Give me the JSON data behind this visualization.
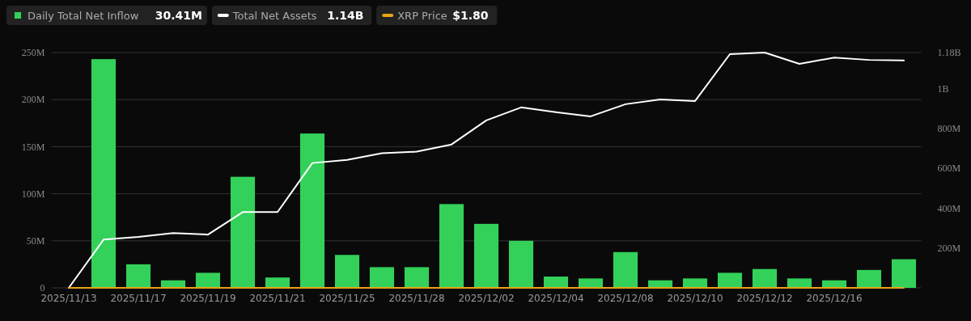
{
  "chart_data": {
    "type": "bar",
    "categories": [
      "2025/11/13",
      null,
      "2025/11/17",
      null,
      "2025/11/19",
      null,
      "2025/11/21",
      null,
      "2025/11/25",
      null,
      "2025/11/28",
      null,
      "2025/12/02",
      null,
      "2025/12/04",
      null,
      "2025/12/08",
      null,
      "2025/12/10",
      null,
      "2025/12/12",
      null,
      "2025/12/16",
      null,
      null
    ],
    "series": [
      {
        "name": "Daily Total Net Inflow",
        "color": "#33d15a",
        "values": [
          0,
          243,
          25,
          8,
          16,
          118,
          11,
          164,
          35,
          22,
          22,
          89,
          68,
          50,
          12,
          10,
          38,
          8,
          10,
          16,
          20,
          10,
          8,
          19,
          30.41
        ]
      },
      {
        "name": "Total Net Assets",
        "type": "line",
        "color": "#ffffff",
        "axis": "y2",
        "values": [
          0,
          242000000,
          255000000,
          275000000,
          267000000,
          380000000,
          380000000,
          626000000,
          642000000,
          675000000,
          683000000,
          719000000,
          840000000,
          905000000,
          881000000,
          860000000,
          921000000,
          945000000,
          937000000,
          1172000000,
          1180000000,
          1123000000,
          1155000000,
          1143000000,
          1140000000
        ]
      },
      {
        "name": "XRP Price",
        "type": "line",
        "color": "#e8a317",
        "values": [
          0,
          0,
          0,
          0,
          0,
          0,
          0,
          0,
          0,
          0,
          0,
          0,
          0,
          0,
          0,
          0,
          0,
          0,
          0,
          0,
          0,
          0,
          0,
          0,
          0
        ]
      }
    ],
    "annotations": [
      "30.41M",
      "1.14B",
      "$1.80"
    ],
    "ylim": [
      0,
      250
    ],
    "yticks": [
      {
        "value": 0,
        "label": "0"
      },
      {
        "value": 50,
        "label": "50M"
      },
      {
        "value": 100,
        "label": "100M"
      },
      {
        "value": 150,
        "label": "150M"
      },
      {
        "value": 200,
        "label": "200M"
      },
      {
        "value": 250,
        "label": "250M"
      }
    ],
    "y2lim": [
      0,
      1180000000
    ],
    "y2ticks": [
      {
        "value": 200000000,
        "label": "200M"
      },
      {
        "value": 400000000,
        "label": "400M"
      },
      {
        "value": 600000000,
        "label": "600M"
      },
      {
        "value": 800000000,
        "label": "800M"
      },
      {
        "value": 1000000000,
        "label": "1B"
      },
      {
        "value": 1180000000,
        "label": "1.18B"
      }
    ],
    "grid": "y",
    "legend": "top left"
  }
}
